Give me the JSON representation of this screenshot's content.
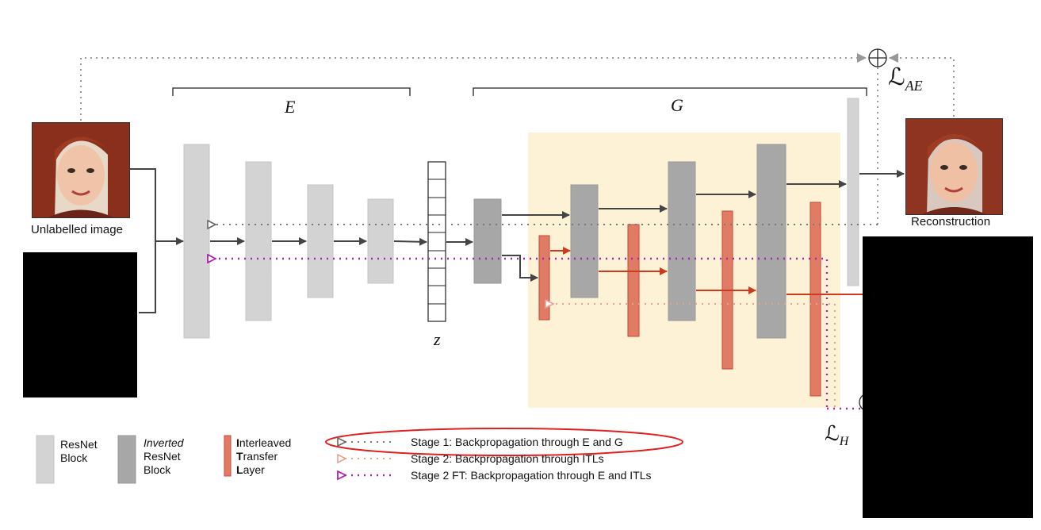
{
  "diagram": {
    "encoder_label": "E",
    "generator_label": "G",
    "latent_label": "z",
    "loss_ae": "ℒ",
    "loss_ae_sub": "AE",
    "loss_h": "ℒ",
    "loss_h_sub": "H",
    "input_caption": "Unlabelled image",
    "output_caption": "Reconstruction"
  },
  "legend": {
    "resnet": [
      "ResNet",
      "Block"
    ],
    "inverted_resnet": [
      "Inverted",
      "ResNet",
      "Block"
    ],
    "itl": [
      {
        "bold": "I",
        "rest": "nterleaved"
      },
      {
        "bold": "T",
        "rest": "ransfer"
      },
      {
        "bold": "L",
        "rest": "ayer"
      }
    ],
    "stage1": "Stage 1: Backpropagation through E and G",
    "stage2": "Stage 2: Backpropagation through ITLs",
    "stage2ft": "Stage 2 FT: Backpropagation through E and ITLs"
  },
  "colors": {
    "resnet": "#d3d3d3",
    "inverted_resnet": "#a7a7a7",
    "itl": "#e07b66",
    "itl_border": "#c84a33",
    "highlight": "#fdf2d6",
    "stage1_arrow": "#777777",
    "stage2_arrow": "#e8a090",
    "stage2ft_arrow": "#b020b0",
    "flow_arrow": "#444444",
    "itl_flow_arrow": "#cc3a1f",
    "stage1_circle": "#e02020"
  }
}
